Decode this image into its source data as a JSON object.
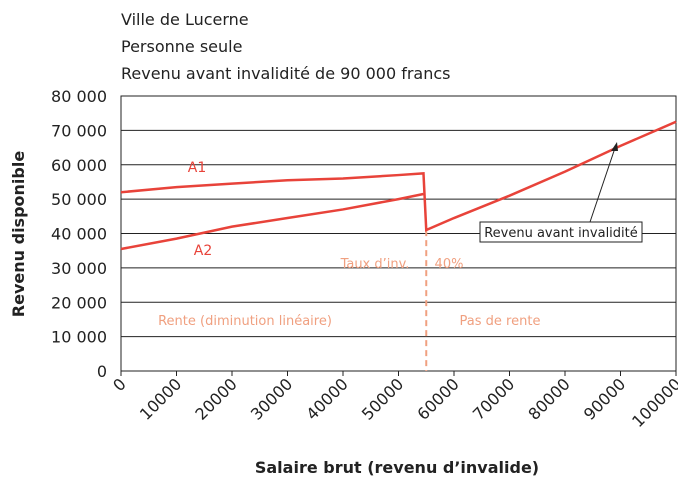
{
  "chart_data": {
    "type": "line",
    "title_lines": [
      "Ville de Lucerne",
      "Personne seule",
      "Revenu avant invalidité de 90 000 francs"
    ],
    "xlabel": "Salaire brut (revenu d’invalide)",
    "ylabel": "Revenu disponible",
    "xlim": [
      0,
      100000
    ],
    "ylim": [
      0,
      80000
    ],
    "xticks": [
      0,
      10000,
      20000,
      30000,
      40000,
      50000,
      60000,
      70000,
      80000,
      90000,
      100000
    ],
    "yticks": [
      0,
      {
        "value": 10000,
        "label": "10 000"
      },
      {
        "value": 20000,
        "label": "20 000"
      },
      {
        "value": 30000,
        "label": "30 000"
      },
      {
        "value": 40000,
        "label": "40 000"
      },
      {
        "value": 50000,
        "label": "50 000"
      },
      {
        "value": 60000,
        "label": "60 000"
      },
      {
        "value": 70000,
        "label": "70 000"
      },
      {
        "value": 80000,
        "label": "80 000"
      }
    ],
    "grid": true,
    "series": [
      {
        "name": "A1",
        "color": "#e8433a",
        "x": [
          0,
          10000,
          20000,
          30000,
          40000,
          50000,
          54500,
          55000,
          60000,
          70000,
          80000,
          90000,
          100000
        ],
        "values": [
          52000,
          53500,
          54500,
          55500,
          56000,
          57000,
          57500,
          41000,
          44500,
          51000,
          58000,
          65500,
          72500
        ]
      },
      {
        "name": "A2",
        "color": "#e8433a",
        "x": [
          0,
          10000,
          20000,
          30000,
          40000,
          50000,
          54500
        ],
        "values": [
          35500,
          38500,
          42000,
          44500,
          47000,
          50000,
          51500
        ]
      }
    ],
    "threshold": {
      "x": 55000,
      "label": "Taux d’inv.",
      "rate_label": "40%",
      "color": "#f0a080"
    },
    "annotations": [
      "Rente (diminution linéaire)",
      "Pas de rente",
      "Revenu avant invalidité"
    ]
  }
}
